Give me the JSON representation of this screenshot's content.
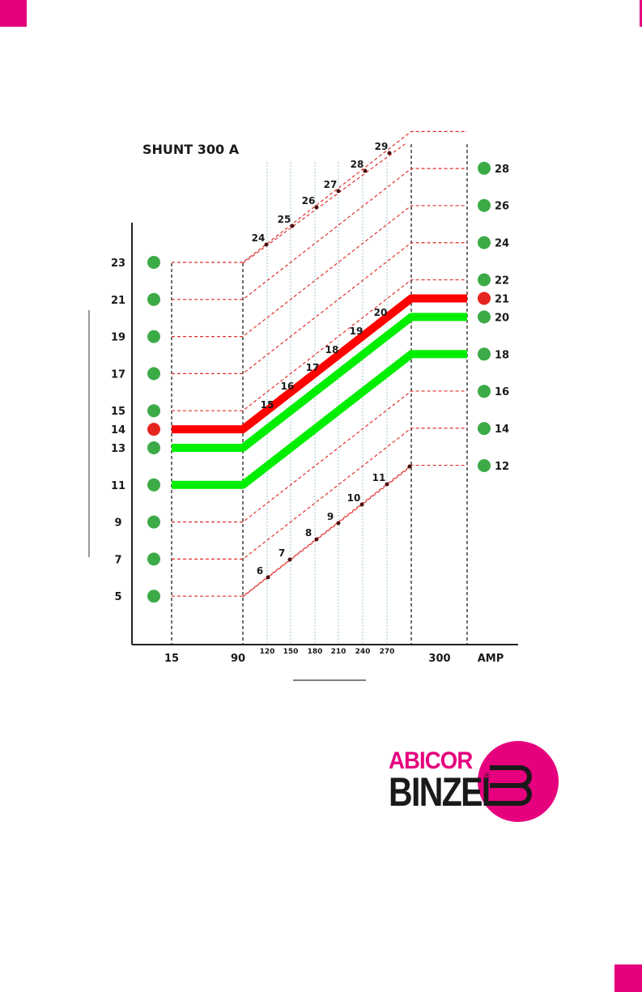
{
  "colors": {
    "accent": "#e6007e",
    "red_line": "#ff0000",
    "green_line": "#00ee00",
    "dot_green": "#3daa48",
    "dot_red": "#e52620",
    "dash_red": "#e0302a"
  },
  "logo": {
    "abicor": "ABICOR",
    "binzel": "BINZEL",
    "reg": "®"
  },
  "chart_data": {
    "type": "line",
    "title": "SHUNT 300 A",
    "xlabel": "AMP",
    "x_ticks_main": [
      "15",
      "90",
      "300",
      "AMP"
    ],
    "x_ticks_minor": [
      "120",
      "150",
      "180",
      "210",
      "240",
      "270"
    ],
    "left_scale": [
      "23",
      "21",
      "19",
      "17",
      "15",
      "14",
      "13",
      "11",
      "9",
      "7",
      "5"
    ],
    "left_scale_highlight": "14",
    "right_scale": [
      "28",
      "26",
      "24",
      "22",
      "21",
      "20",
      "18",
      "16",
      "14",
      "12"
    ],
    "right_scale_highlight": "21",
    "diagonal_upper_labels": [
      "24",
      "25",
      "26",
      "27",
      "28",
      "29"
    ],
    "diagonal_lower_labels": [
      "6",
      "7",
      "8",
      "9",
      "10",
      "11"
    ],
    "diagonal_mid_labels": [
      "15",
      "16",
      "17",
      "18",
      "19",
      "20"
    ],
    "series": [
      {
        "name": "",
        "color": "red",
        "values": [
          14,
          14,
          21,
          21
        ]
      },
      {
        "name": "",
        "color": "green",
        "values": [
          13,
          13,
          20,
          20
        ]
      },
      {
        "name": "",
        "color": "green",
        "values": [
          11,
          11,
          18,
          18
        ]
      }
    ]
  }
}
